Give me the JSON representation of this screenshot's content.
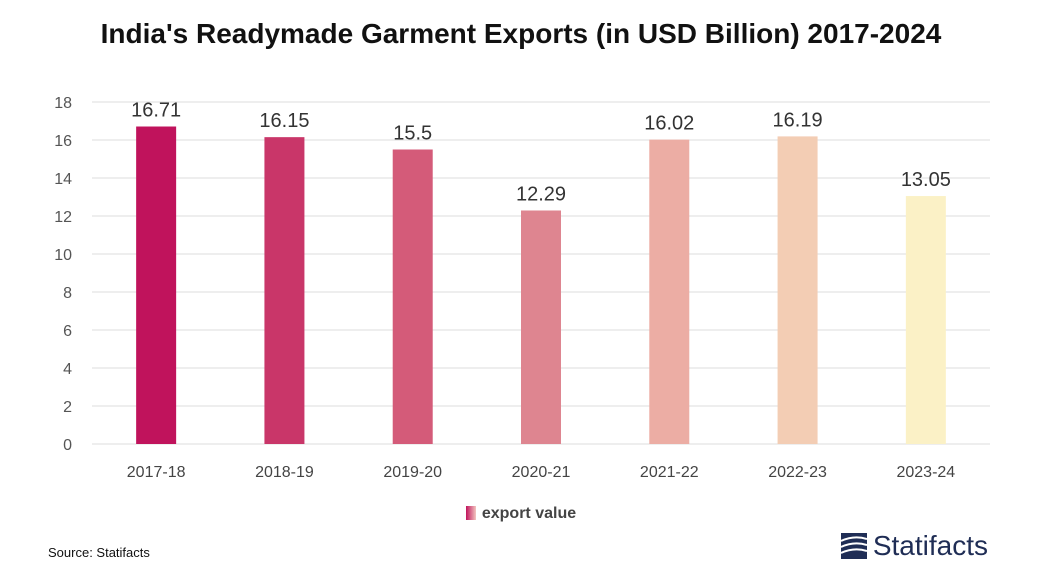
{
  "chart_data": {
    "type": "bar",
    "title": "India's Readymade Garment Exports (in USD Billion) 2017-2024",
    "categories": [
      "2017-18",
      "2018-19",
      "2019-20",
      "2020-21",
      "2021-22",
      "2022-23",
      "2023-24"
    ],
    "values": [
      16.71,
      16.15,
      15.5,
      12.29,
      16.02,
      16.19,
      13.05
    ],
    "value_labels": [
      "16.71",
      "16.15",
      "15.5",
      "12.29",
      "16.02",
      "16.19",
      "13.05"
    ],
    "colors": [
      "#c0135c",
      "#c93669",
      "#d45b79",
      "#de8590",
      "#ecada4",
      "#f3cdb4",
      "#fbf1c6"
    ],
    "yticks": [
      0,
      2,
      4,
      6,
      8,
      10,
      12,
      14,
      16,
      18
    ],
    "ylim": [
      0,
      18
    ],
    "xlabel": "",
    "ylabel": "",
    "grid": true,
    "legend": {
      "label": "export value",
      "position": "bottom"
    }
  },
  "footer": {
    "source": "Source: Statifacts",
    "brand": "Statifacts",
    "logo_icon": "statifacts-logo-icon"
  }
}
